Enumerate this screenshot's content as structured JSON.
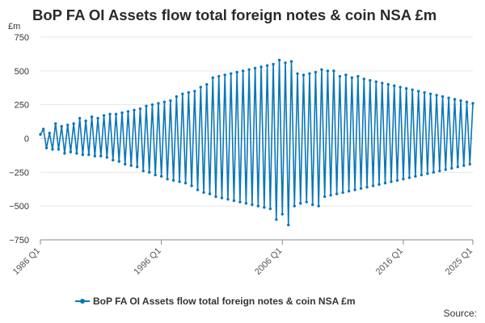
{
  "header": {
    "title": "BoP FA OI Assets flow total foreign notes & coin NSA £m",
    "unit": "£m"
  },
  "legend": {
    "label": "BoP FA OI Assets flow total foreign notes & coin NSA £m"
  },
  "footer": {
    "source": "Source:"
  },
  "colors": {
    "series": "#0a76b8",
    "grid": "#e6e6e6",
    "axis": "#888888",
    "text": "#333333"
  },
  "chart_data": {
    "type": "line",
    "title": "BoP FA OI Assets flow total foreign notes & coin NSA £m",
    "ylabel": "£m",
    "xlabel": "",
    "ylim": [
      -750,
      750
    ],
    "yticks": [
      -750,
      -500,
      -250,
      0,
      250,
      500,
      750
    ],
    "ytick_labels": [
      "−750",
      "−500",
      "−250",
      "0",
      "250",
      "500",
      "750"
    ],
    "xticks": [
      "1986 Q1",
      "1996 Q1",
      "2006 Q1",
      "2016 Q1",
      "2025 Q1"
    ],
    "grid": true,
    "legend_position": "bottom",
    "series": [
      {
        "name": "BoP FA OI Assets flow total foreign notes & coin NSA £m",
        "start": "1986 Q1",
        "frequency": "quarterly",
        "values": [
          30,
          70,
          -70,
          40,
          -80,
          110,
          -80,
          90,
          -110,
          100,
          -100,
          110,
          -110,
          150,
          -120,
          130,
          -120,
          160,
          -130,
          150,
          -130,
          170,
          -140,
          180,
          -160,
          180,
          -170,
          190,
          -190,
          200,
          -200,
          210,
          -210,
          220,
          -240,
          240,
          -250,
          250,
          -270,
          260,
          -280,
          270,
          -300,
          280,
          -310,
          310,
          -320,
          330,
          -330,
          340,
          -350,
          350,
          -380,
          380,
          -400,
          400,
          -410,
          450,
          -430,
          460,
          -440,
          470,
          -450,
          480,
          -460,
          490,
          -470,
          500,
          -480,
          510,
          -490,
          520,
          -500,
          530,
          -510,
          540,
          -520,
          550,
          -600,
          580,
          -560,
          560,
          -640,
          570,
          -500,
          480,
          -480,
          470,
          -470,
          480,
          -490,
          490,
          -500,
          510,
          -430,
          500,
          -420,
          500,
          -410,
          460,
          -400,
          470,
          -390,
          450,
          -380,
          460,
          -370,
          440,
          -360,
          430,
          -350,
          420,
          -340,
          410,
          -330,
          400,
          -320,
          390,
          -310,
          380,
          -300,
          370,
          -290,
          360,
          -280,
          350,
          -270,
          340,
          -260,
          330,
          -250,
          320,
          -240,
          310,
          -230,
          300,
          -220,
          290,
          -210,
          280,
          -200,
          270,
          -190,
          260
        ]
      }
    ]
  }
}
